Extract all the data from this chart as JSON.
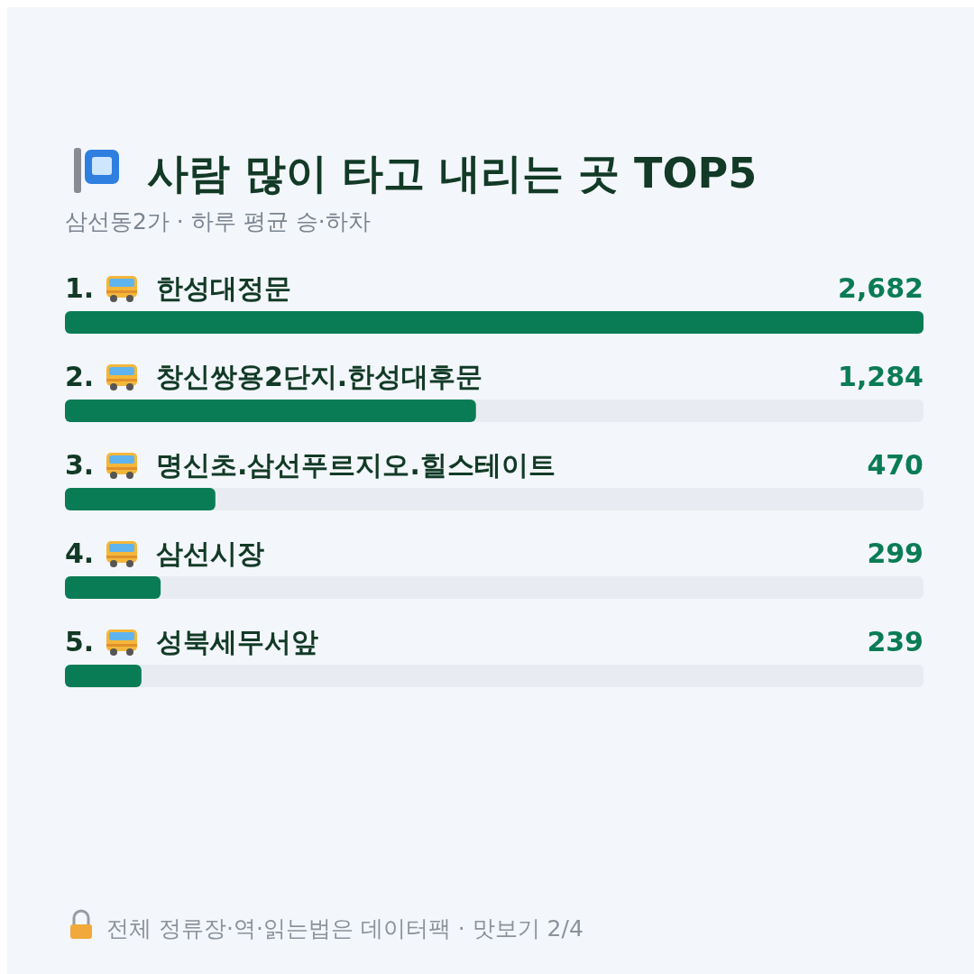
{
  "chart_data": {
    "type": "bar",
    "orientation": "horizontal",
    "title": "사람 많이 타고 내리는 곳 TOP5",
    "subtitle": "삼선동2가 · 하루 평균 승·하차",
    "categories": [
      "1. 한성대정문",
      "2. 창신쌍용2단지.한성대후문",
      "3. 명신초.삼선푸르지오.힐스테이트",
      "4. 삼선시장",
      "5. 성북세무서앞"
    ],
    "values": [
      2682,
      1284,
      470,
      299,
      239
    ],
    "color": "#0a7c55",
    "value_labels": [
      "2,682",
      "1,284",
      "470",
      "299",
      "239"
    ],
    "annotations": [
      "전체 정류장·역·읽는법은 데이터팩 · 맛보기 2/4"
    ]
  }
}
